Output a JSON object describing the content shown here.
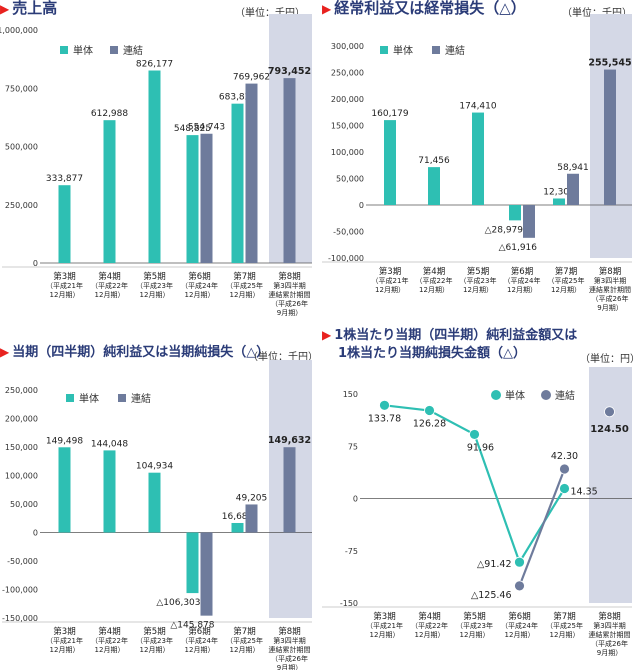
{
  "colors": {
    "single": "#2ebfb3",
    "consolidated": "#6e7b9c",
    "highlight": "#d4d8e6",
    "title": "#2b3c78",
    "marker": "#e8221f"
  },
  "categories": [
    [
      "第3期",
      "（平成21年",
      "12月期）"
    ],
    [
      "第4期",
      "（平成22年",
      "12月期）"
    ],
    [
      "第5期",
      "（平成23年",
      "12月期）"
    ],
    [
      "第6期",
      "（平成24年",
      "12月期）"
    ],
    [
      "第7期",
      "（平成25年",
      "12月期）"
    ],
    [
      "第8期",
      "第3四半期",
      "連結累計期間",
      "（平成26年",
      "9月期）"
    ]
  ],
  "legend": {
    "single": "単体",
    "consolidated": "連結"
  },
  "chart_data": [
    {
      "type": "bar",
      "title": "売上高",
      "unit": "（単位：千円）",
      "ylim": [
        0,
        1000000
      ],
      "yticks": [
        "0",
        "250,000",
        "500,000",
        "750,000",
        "1,000,000"
      ],
      "series": [
        {
          "name": "単体",
          "values": [
            333877,
            612988,
            826177,
            548825,
            683825,
            null
          ],
          "labels": [
            "333,877",
            "612,988",
            "826,177",
            "548,825",
            "683,825",
            ""
          ]
        },
        {
          "name": "連結",
          "values": [
            null,
            null,
            null,
            554743,
            769962,
            793452
          ],
          "labels": [
            "",
            "",
            "",
            "554,743",
            "769,962",
            "793,452"
          ]
        }
      ]
    },
    {
      "type": "bar",
      "title": "経常利益又は経常損失（△）",
      "unit": "（単位：千円）",
      "ylim": [
        -100000,
        300000
      ],
      "yticks": [
        "-100,000",
        "-50,000",
        "0",
        "50,000",
        "100,000",
        "150,000",
        "200,000",
        "250,000",
        "300,000"
      ],
      "series": [
        {
          "name": "単体",
          "values": [
            160179,
            71456,
            174410,
            -28979,
            12307,
            null
          ],
          "labels": [
            "160,179",
            "71,456",
            "174,410",
            "△28,979",
            "12,307",
            ""
          ]
        },
        {
          "name": "連結",
          "values": [
            null,
            null,
            null,
            -61916,
            58941,
            255545
          ],
          "labels": [
            "",
            "",
            "",
            "△61,916",
            "58,941",
            "255,545"
          ]
        }
      ]
    },
    {
      "type": "bar",
      "title": "当期（四半期）純利益又は当期純損失（△）",
      "unit": "（単位：千円）",
      "ylim": [
        -150000,
        250000
      ],
      "yticks": [
        "-150,000",
        "-100,000",
        "-50,000",
        "0",
        "50,000",
        "100,000",
        "150,000",
        "200,000",
        "250,000"
      ],
      "series": [
        {
          "name": "単体",
          "values": [
            149498,
            144048,
            104934,
            -106303,
            16687,
            null
          ],
          "labels": [
            "149,498",
            "144,048",
            "104,934",
            "△106,303",
            "16,687",
            ""
          ]
        },
        {
          "name": "連結",
          "values": [
            null,
            null,
            null,
            -145878,
            49205,
            149632
          ],
          "labels": [
            "",
            "",
            "",
            "△145,878",
            "49,205",
            "149,632"
          ]
        }
      ]
    },
    {
      "type": "line",
      "title": "1株当たり当期（四半期）純利益金額又は",
      "title2": "1株当たり当期純損失金額（△）",
      "unit": "（単位：円）",
      "ylim": [
        -150,
        150
      ],
      "yticks": [
        "-150",
        "-75",
        "0",
        "75",
        "150"
      ],
      "series": [
        {
          "name": "単体",
          "values": [
            133.78,
            126.28,
            91.96,
            -91.42,
            14.35,
            null
          ],
          "labels": [
            "133.78",
            "126.28",
            "91.96",
            "△91.42",
            "14.35",
            ""
          ]
        },
        {
          "name": "連結",
          "values": [
            null,
            null,
            null,
            -125.46,
            42.3,
            124.5
          ],
          "labels": [
            "",
            "",
            "",
            "△125.46",
            "42.30",
            "124.50"
          ]
        }
      ]
    }
  ]
}
